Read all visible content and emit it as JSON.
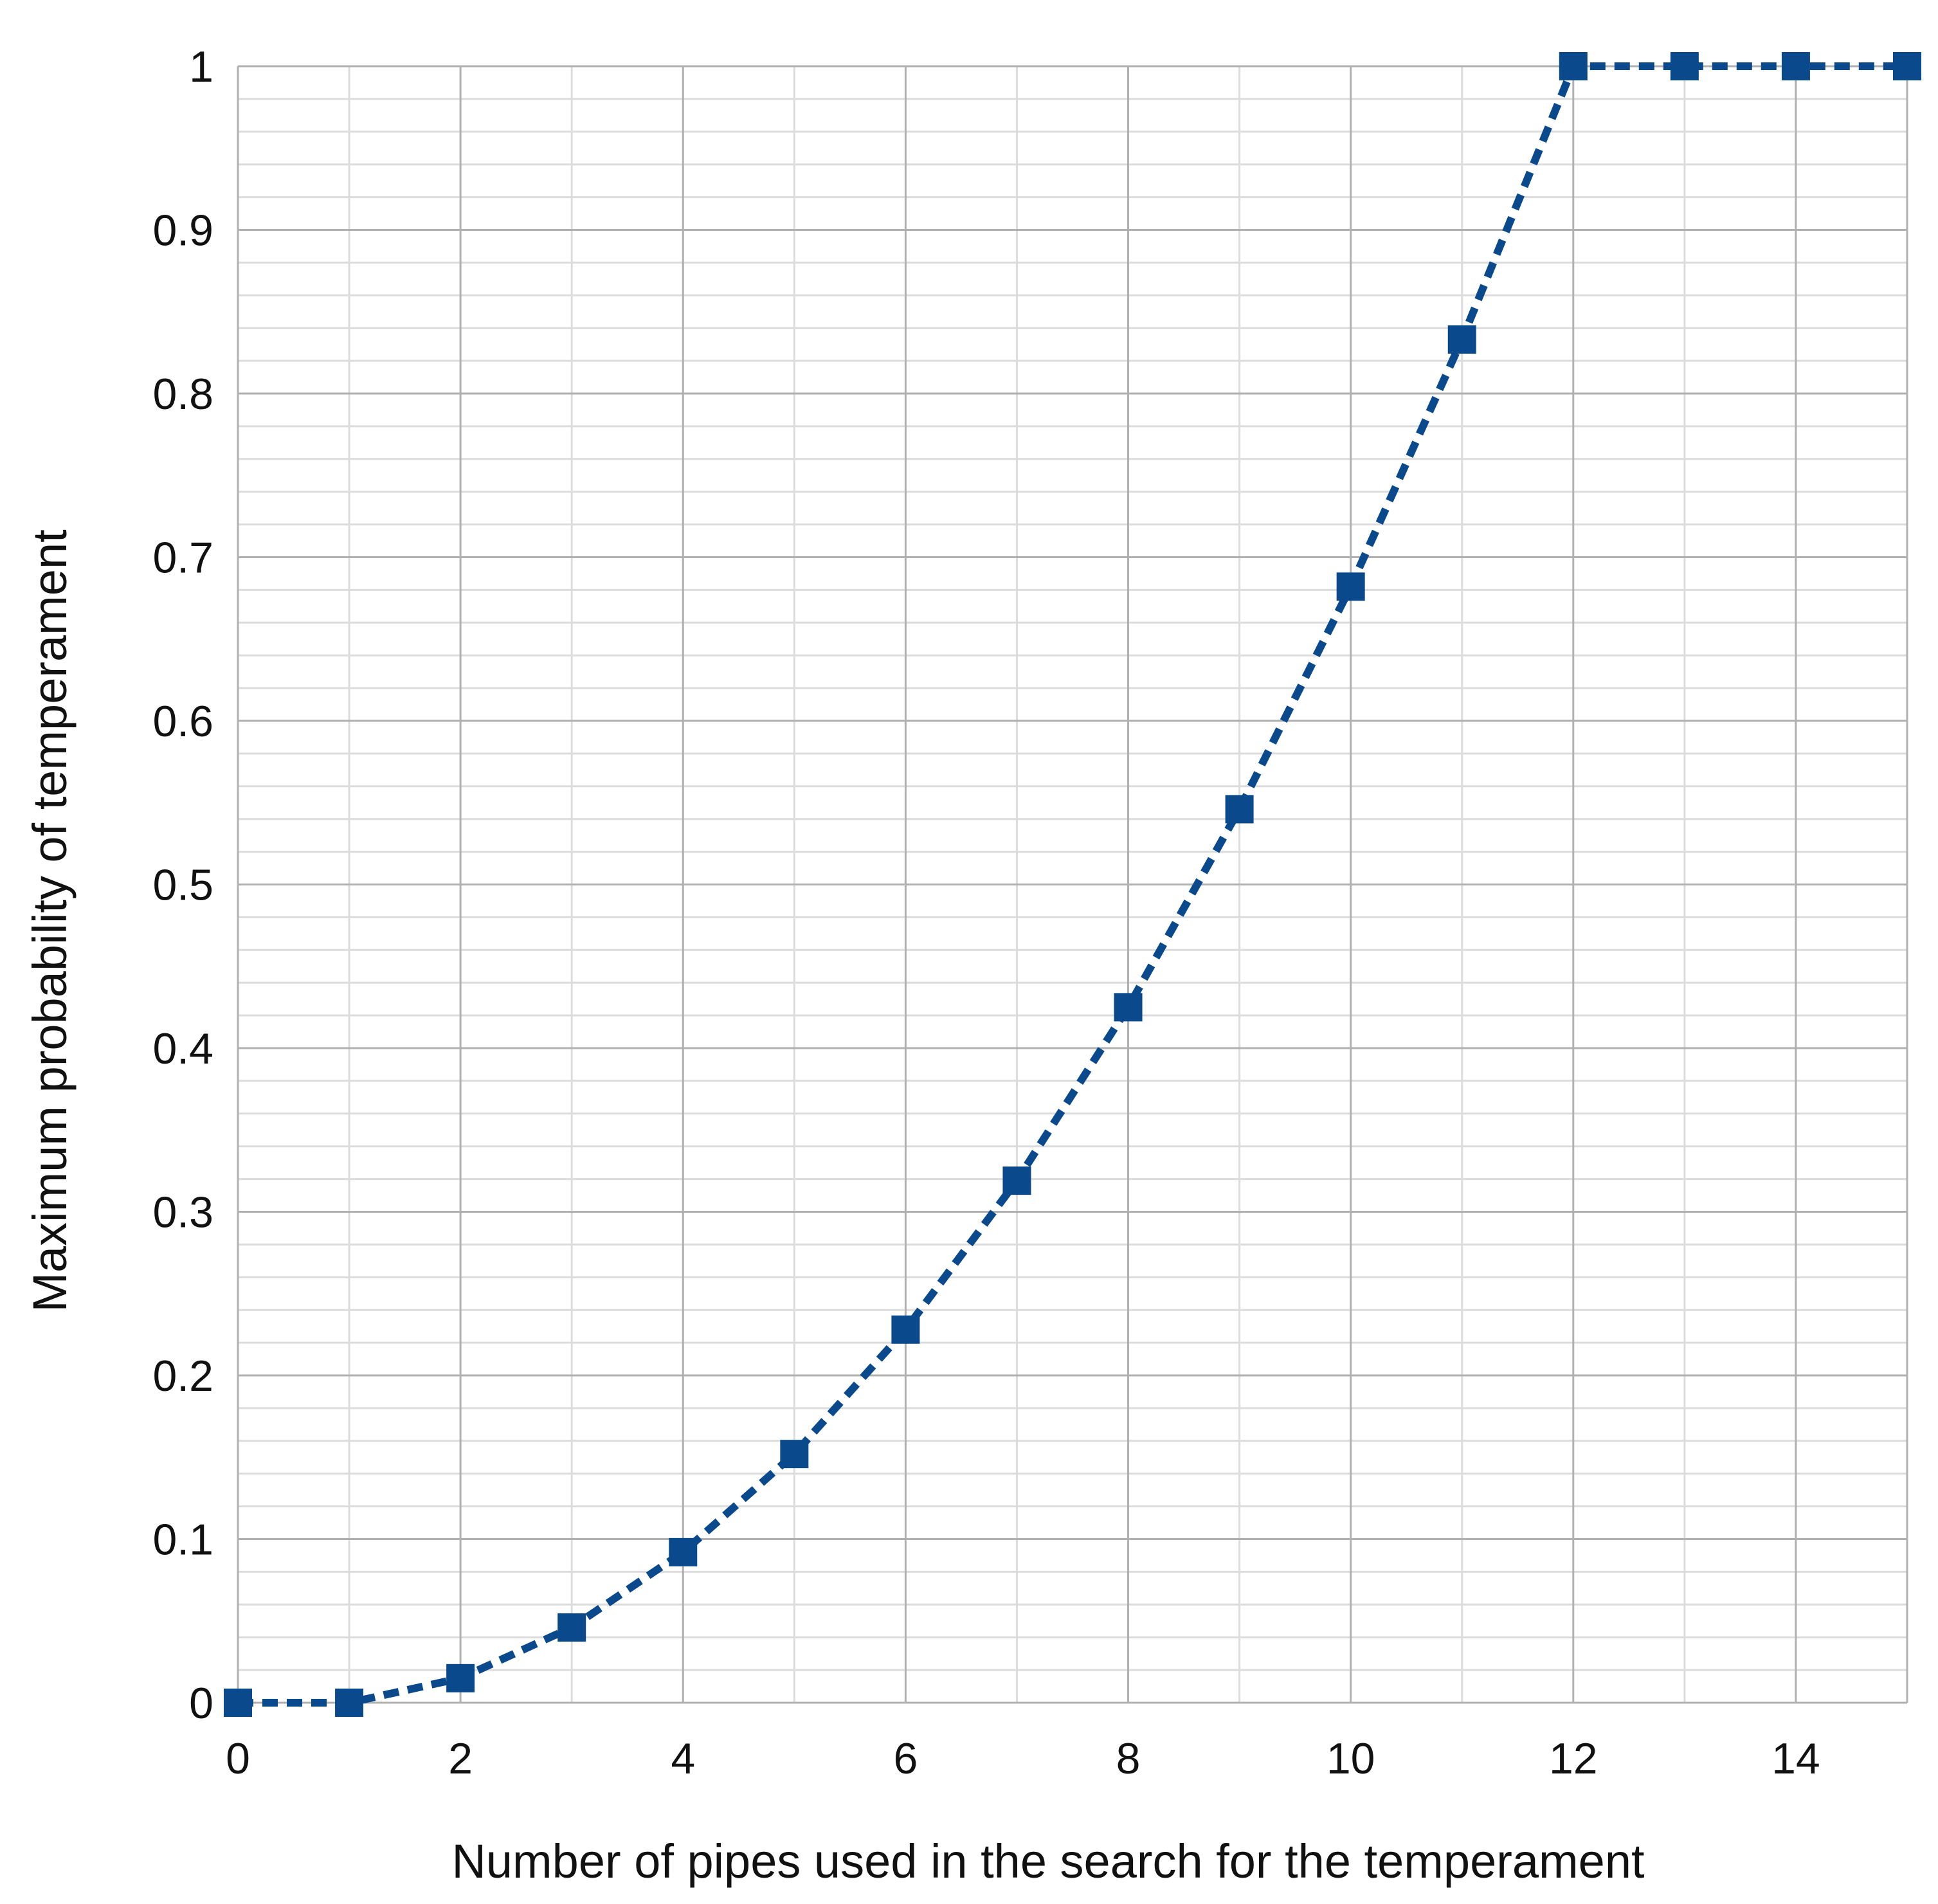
{
  "chart_data": {
    "type": "line",
    "title": "",
    "xlabel": "Number of pipes used in the search for the temperament",
    "ylabel": "Maximum probability of temperament",
    "xlim": [
      0,
      15
    ],
    "ylim": [
      0,
      1
    ],
    "xticks": [
      0,
      2,
      4,
      6,
      8,
      10,
      12,
      14
    ],
    "xtick_labels": [
      "0",
      "2",
      "4",
      "6",
      "8",
      "10",
      "12",
      "14"
    ],
    "yticks": [
      0,
      0.1,
      0.2,
      0.3,
      0.4,
      0.5,
      0.6,
      0.7,
      0.8,
      0.9,
      1
    ],
    "ytick_labels": [
      "0",
      "0.1",
      "0.2",
      "0.3",
      "0.4",
      "0.5",
      "0.6",
      "0.7",
      "0.8",
      "0.9",
      "1"
    ],
    "grid": true,
    "legend": "none",
    "series": [
      {
        "color": "#0a4a8c",
        "line_style": "dashed",
        "marker": "square",
        "x": [
          0,
          1,
          2,
          3,
          4,
          5,
          6,
          7,
          8,
          9,
          10,
          11,
          12,
          13,
          14,
          15
        ],
        "y": [
          0,
          0,
          0.015,
          0.046,
          0.092,
          0.152,
          0.228,
          0.319,
          0.425,
          0.546,
          0.682,
          0.833,
          1,
          1,
          1,
          1
        ]
      }
    ]
  }
}
